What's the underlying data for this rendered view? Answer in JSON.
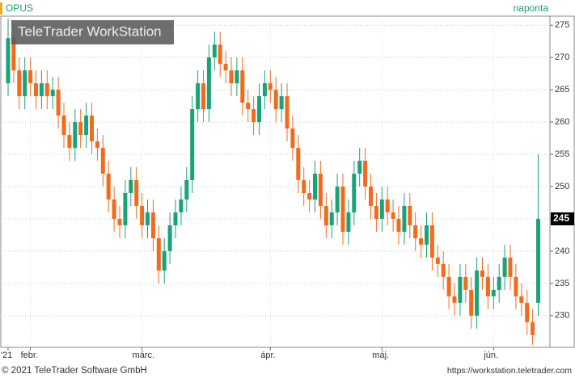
{
  "chart_data": {
    "type": "candlestick",
    "symbol": "OPUS",
    "period": "naponta",
    "watermark": "TeleTrader WorkStation",
    "footer_left": "© 2021 TeleTrader Software GmbH",
    "footer_right": "https://workstation.teletrader.com",
    "up_color": "#1aa37a",
    "down_color": "#f26b1d",
    "grid": true,
    "ylim": [
      225.1,
      276.4
    ],
    "yticks": [
      230,
      235,
      240,
      245,
      250,
      255,
      260,
      265,
      270,
      275
    ],
    "categories": [
      "'21",
      null,
      null,
      null,
      "febr.",
      null,
      null,
      null,
      null,
      null,
      null,
      null,
      null,
      null,
      null,
      null,
      null,
      null,
      null,
      null,
      null,
      null,
      null,
      null,
      "márc.",
      null,
      null,
      null,
      null,
      null,
      null,
      null,
      null,
      null,
      null,
      null,
      null,
      null,
      null,
      null,
      null,
      null,
      null,
      null,
      null,
      null,
      null,
      "ápr.",
      null,
      null,
      null,
      null,
      null,
      null,
      null,
      null,
      null,
      null,
      null,
      null,
      null,
      null,
      null,
      null,
      null,
      null,
      null,
      "máj.",
      null,
      null,
      null,
      null,
      null,
      null,
      null,
      null,
      null,
      null,
      null,
      null,
      null,
      null,
      null,
      null,
      null,
      null,
      null,
      "jún.",
      null,
      null,
      null,
      null,
      null,
      null,
      null,
      null
    ],
    "open": [
      266,
      273,
      268,
      264,
      268,
      266,
      264,
      266,
      264,
      265,
      261,
      258,
      256,
      260,
      258,
      261,
      257,
      256,
      252,
      248,
      245,
      244,
      249,
      251,
      247,
      244,
      246,
      242,
      237,
      240,
      244,
      246,
      248,
      251,
      262,
      266,
      262,
      270,
      272,
      269,
      268,
      266,
      268,
      263,
      262,
      260,
      264,
      266,
      265,
      262,
      264,
      259,
      256,
      251,
      249,
      248,
      252,
      247,
      244,
      246,
      250,
      243,
      246,
      252,
      254,
      250,
      247,
      245,
      248,
      246,
      245,
      243,
      247,
      244,
      242,
      241,
      244,
      239,
      238,
      236,
      233,
      232,
      236,
      234,
      230,
      237,
      236,
      233,
      234,
      236,
      239,
      236,
      233,
      232,
      229,
      232
    ],
    "high": [
      276,
      275,
      270,
      270,
      270,
      268,
      268,
      268,
      267,
      267,
      263,
      260,
      262,
      262,
      263,
      263,
      259,
      258,
      254,
      250,
      247,
      251,
      253,
      253,
      249,
      248,
      248,
      244,
      242,
      246,
      248,
      250,
      253,
      264,
      268,
      268,
      272,
      274,
      274,
      271,
      270,
      270,
      270,
      265,
      264,
      266,
      268,
      268,
      267,
      266,
      266,
      261,
      258,
      253,
      251,
      254,
      254,
      249,
      248,
      252,
      252,
      248,
      254,
      256,
      256,
      252,
      249,
      250,
      250,
      248,
      247,
      249,
      249,
      246,
      244,
      246,
      246,
      241,
      240,
      238,
      235,
      238,
      238,
      236,
      239,
      239,
      238,
      236,
      238,
      241,
      241,
      238,
      235,
      234,
      231,
      255
    ],
    "low": [
      264,
      266,
      262,
      262,
      264,
      262,
      262,
      262,
      262,
      259,
      256,
      254,
      254,
      256,
      256,
      255,
      254,
      250,
      246,
      243,
      242,
      242,
      247,
      245,
      242,
      242,
      240,
      235,
      235,
      238,
      242,
      244,
      246,
      249,
      260,
      260,
      260,
      268,
      267,
      266,
      264,
      264,
      261,
      260,
      258,
      258,
      262,
      263,
      260,
      260,
      257,
      254,
      249,
      247,
      246,
      246,
      245,
      242,
      242,
      244,
      241,
      241,
      244,
      250,
      248,
      245,
      243,
      243,
      244,
      243,
      241,
      241,
      242,
      240,
      239,
      239,
      237,
      236,
      234,
      231,
      230,
      230,
      232,
      228,
      228,
      234,
      231,
      231,
      232,
      234,
      234,
      231,
      230,
      227,
      225.5,
      230
    ],
    "close": [
      273,
      268,
      264,
      268,
      266,
      264,
      266,
      264,
      265,
      261,
      258,
      256,
      260,
      258,
      261,
      257,
      256,
      252,
      248,
      245,
      244,
      249,
      251,
      247,
      244,
      246,
      242,
      237,
      240,
      244,
      246,
      248,
      251,
      262,
      266,
      262,
      270,
      272,
      269,
      268,
      266,
      268,
      263,
      262,
      260,
      264,
      266,
      265,
      262,
      264,
      259,
      256,
      251,
      249,
      248,
      252,
      247,
      244,
      246,
      250,
      243,
      246,
      252,
      254,
      250,
      247,
      245,
      248,
      246,
      245,
      243,
      247,
      244,
      242,
      241,
      244,
      239,
      238,
      236,
      233,
      232,
      236,
      234,
      230,
      237,
      236,
      233,
      234,
      236,
      239,
      236,
      233,
      232,
      229,
      227,
      245
    ]
  }
}
